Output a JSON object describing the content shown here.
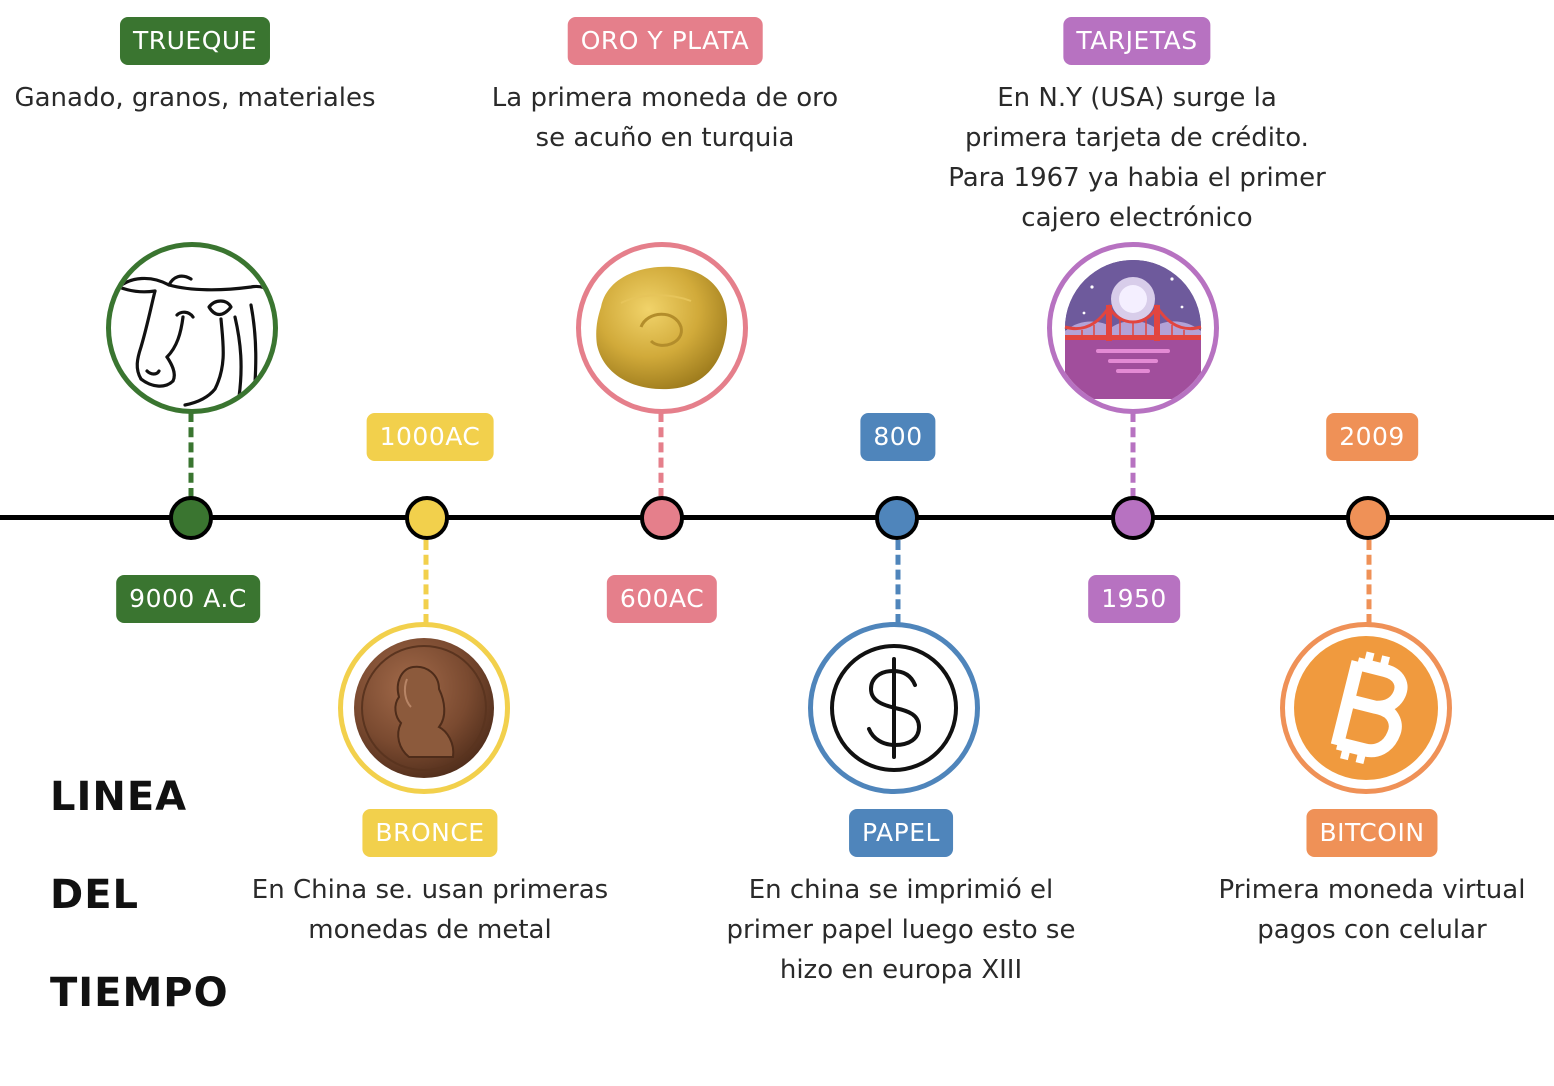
{
  "title": {
    "line1": "LINEA",
    "line2": "DEL",
    "line3": "TIEMPO"
  },
  "colors": {
    "green": "#3a7530",
    "yellow": "#f2d04c",
    "pink": "#e57f8b",
    "blue": "#4f85bb",
    "purple": "#b772c1",
    "orange": "#ef9157"
  },
  "events": [
    {
      "label": "TRUEQUE",
      "date": "9000 A.C",
      "desc": [
        "Ganado, granos, materiales"
      ],
      "icon": "bull-icon"
    },
    {
      "label": "BRONCE",
      "date": "1000AC",
      "desc": [
        "En China se. usan primeras",
        "monedas de metal"
      ],
      "icon": "bronze-coin-icon"
    },
    {
      "label": "ORO Y PLATA",
      "date": "600AC",
      "desc": [
        "La primera moneda de oro",
        "se acuño en turquia"
      ],
      "icon": "gold-coin-icon"
    },
    {
      "label": "PAPEL",
      "date": "800",
      "desc": [
        "En china se imprimió el",
        "primer papel luego esto se",
        "hizo en europa XIII"
      ],
      "icon": "dollar-icon"
    },
    {
      "label": "TARJETAS",
      "date": "1950",
      "desc": [
        "En N.Y (USA) surge la",
        "primera tarjeta de crédito.",
        "Para 1967 ya habia el primer",
        "cajero electrónico"
      ],
      "icon": "bridge-icon"
    },
    {
      "label": "BITCOIN",
      "date": "2009",
      "desc": [
        "Primera moneda virtual",
        "pagos con celular"
      ],
      "icon": "bitcoin-icon"
    }
  ]
}
